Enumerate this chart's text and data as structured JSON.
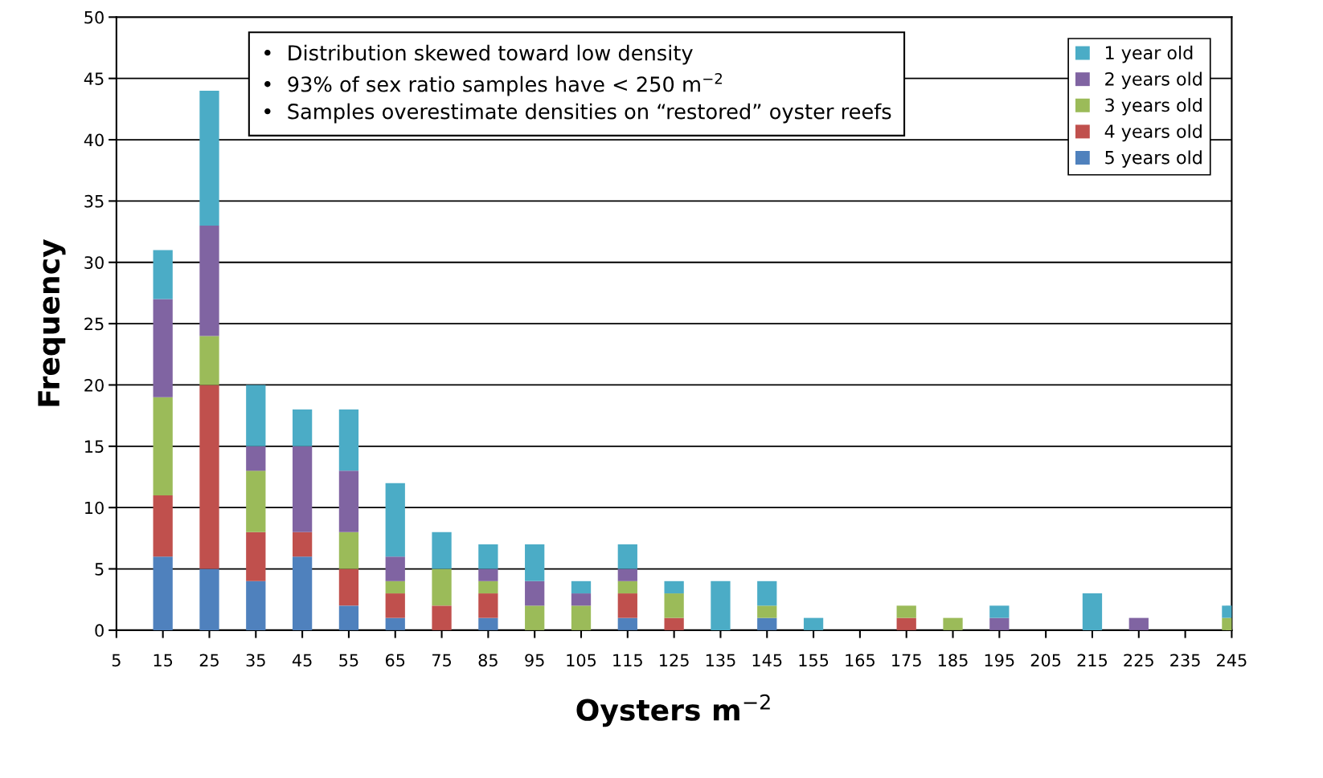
{
  "chart_data": {
    "type": "bar",
    "stacked": true,
    "xlabel": "Oysters m$^{−2}$",
    "ylabel": "Frequency",
    "x": [
      15,
      25,
      35,
      45,
      55,
      65,
      75,
      85,
      95,
      105,
      115,
      125,
      135,
      145,
      155,
      165,
      175,
      185,
      195,
      205,
      215,
      225,
      235,
      245
    ],
    "xlim": [
      5,
      245
    ],
    "xticks": [
      5,
      15,
      25,
      35,
      45,
      55,
      65,
      75,
      85,
      95,
      105,
      115,
      125,
      135,
      145,
      155,
      165,
      175,
      185,
      195,
      205,
      215,
      225,
      235,
      245
    ],
    "ylim": [
      0,
      50
    ],
    "yticks": [
      0,
      5,
      10,
      15,
      20,
      25,
      30,
      35,
      40,
      45,
      50
    ],
    "grid": "y",
    "legend": "top right",
    "annotations": [
      "•  Distribution skewed toward low density",
      "•  93% of sex ratio samples have < 250 m$^{−2}$",
      "•  Samples overestimate densities on “restored” oyster reefs"
    ],
    "series": [
      {
        "name": "5 years old",
        "color": "#4f81bd",
        "values": [
          6,
          5,
          4,
          6,
          2,
          1,
          0,
          1,
          0,
          0,
          1,
          0,
          0,
          1,
          0,
          0,
          0,
          0,
          0,
          0,
          0,
          0,
          0,
          0
        ]
      },
      {
        "name": "4 years old",
        "color": "#c0504d",
        "values": [
          5,
          15,
          4,
          2,
          3,
          2,
          2,
          2,
          0,
          0,
          2,
          1,
          0,
          0,
          0,
          0,
          1,
          0,
          0,
          0,
          0,
          0,
          0,
          0
        ]
      },
      {
        "name": "3 years old",
        "color": "#9bbb59",
        "values": [
          8,
          4,
          5,
          0,
          3,
          1,
          3,
          1,
          2,
          2,
          1,
          2,
          0,
          1,
          0,
          0,
          1,
          1,
          0,
          0,
          0,
          0,
          0,
          1
        ]
      },
      {
        "name": "2 years old",
        "color": "#8064a2",
        "values": [
          8,
          9,
          2,
          7,
          5,
          2,
          0,
          1,
          2,
          1,
          1,
          0,
          0,
          0,
          0,
          0,
          0,
          0,
          1,
          0,
          0,
          1,
          0,
          0
        ]
      },
      {
        "name": "1 year old",
        "color": "#4bacc6",
        "values": [
          4,
          11,
          5,
          3,
          5,
          6,
          3,
          2,
          3,
          1,
          2,
          1,
          4,
          2,
          1,
          0,
          0,
          0,
          1,
          0,
          3,
          0,
          0,
          1
        ]
      }
    ]
  }
}
